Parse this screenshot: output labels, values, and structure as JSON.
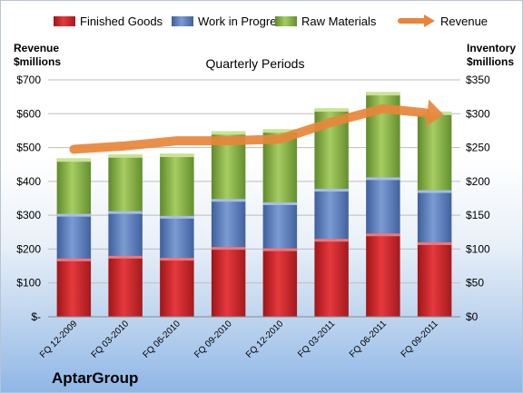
{
  "chart_data": {
    "type": "bar",
    "subtitle": "Quarterly Periods",
    "brand": "AptarGroup",
    "categories": [
      "FQ 12-2009",
      "FQ 03-2010",
      "FQ 06-2010",
      "FQ 09-2010",
      "FQ 12-2010",
      "FQ 03-2011",
      "FQ 06-2011",
      "FQ 09-2011"
    ],
    "left_axis": {
      "label_line1": "Revenue",
      "label_line2": "$millions",
      "ylim": [
        0,
        700
      ],
      "ticks": [
        0,
        100,
        200,
        300,
        400,
        500,
        600,
        700
      ],
      "tick_labels": [
        "$-",
        "$100",
        "$200",
        "$300",
        "$400",
        "$500",
        "$600",
        "$700"
      ]
    },
    "right_axis": {
      "label_line1": "Inventory",
      "label_line2": "$millions",
      "ylim": [
        0,
        350
      ],
      "ticks": [
        0,
        50,
        100,
        150,
        200,
        250,
        300,
        350
      ],
      "tick_labels": [
        "$0",
        "$50",
        "$100",
        "$150",
        "$200",
        "$250",
        "$300",
        "$350"
      ]
    },
    "stacked_series": [
      {
        "name": "Finished Goods",
        "axis": "right",
        "color": "#d9262c",
        "values": [
          86,
          90,
          87,
          103,
          101,
          115,
          123,
          110
        ]
      },
      {
        "name": "Work in Progress",
        "axis": "right",
        "color": "#5b7fbf",
        "values": [
          66,
          66,
          62,
          71,
          68,
          74,
          83,
          77
        ]
      },
      {
        "name": "Raw Materials",
        "axis": "right",
        "color": "#8db84a",
        "values": [
          81,
          83,
          91,
          99,
          107,
          118,
          125,
          115
        ]
      }
    ],
    "line_series": {
      "name": "Revenue",
      "axis": "left",
      "color": "#e8853a",
      "values": [
        495,
        505,
        520,
        520,
        525,
        575,
        615,
        600
      ]
    },
    "grid": true,
    "legend": "top"
  }
}
